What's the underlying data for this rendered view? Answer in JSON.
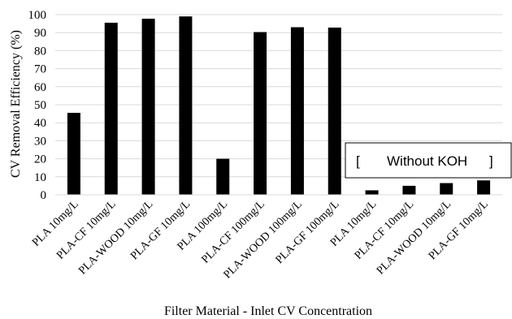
{
  "chart_data": {
    "type": "bar",
    "categories": [
      "PLA 10mg/L",
      "PLA-CF 10mg/L",
      "PLA-WOOD 10mg/L",
      "PLA-GF 10mg/L",
      "PLA 100mg/L",
      "PLA-CF 100mg/L",
      "PLA-WOOD 100mg/L",
      "PLA-GF 100mg/L",
      "PLA 10mg/L",
      "PLA-CF 10mg/L",
      "PLA-WOOD 10mg/L",
      "PLA-GF 10mg/L"
    ],
    "values": [
      45.5,
      95.5,
      97.7,
      99.0,
      20.0,
      90.3,
      93.0,
      92.8,
      2.5,
      5.0,
      6.5,
      8.0
    ],
    "xlabel": "Filter Material - Inlet CV Concentration",
    "ylabel": "CV Removal Efficiency (%)",
    "ylim": [
      0,
      100
    ],
    "yticks": [
      0,
      10,
      20,
      30,
      40,
      50,
      60,
      70,
      80,
      90,
      100
    ],
    "grid": true,
    "bar_color": "#000000",
    "annotation": {
      "open": "[",
      "text": "Without KOH",
      "close": "]"
    }
  }
}
